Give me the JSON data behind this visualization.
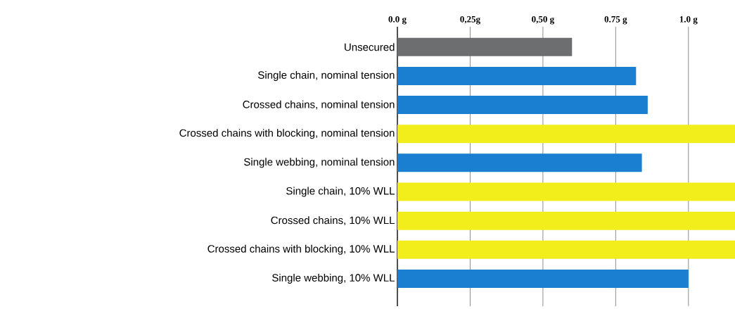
{
  "chart_data": {
    "type": "bar",
    "orientation": "horizontal",
    "categories": [
      "Unsecured",
      "Single chain, nominal tension",
      "Crossed chains, nominal tension",
      "Crossed chains with blocking, nominal tension",
      "Single webbing, nominal tension",
      "Single chain, 10% WLL",
      "Crossed chains, 10% WLL",
      "Crossed chains with blocking, 10% WLL",
      "Single webbing, 10% WLL"
    ],
    "values": [
      0.6,
      0.82,
      0.86,
      1.16,
      0.84,
      1.16,
      1.16,
      1.16,
      1.0
    ],
    "colors": [
      "#6d6e70",
      "#1a7fd0",
      "#1a7fd0",
      "#f2ee1c",
      "#1a7fd0",
      "#f2ee1c",
      "#f2ee1c",
      "#f2ee1c",
      "#1a7fd0"
    ],
    "xlim": [
      0,
      1.16
    ],
    "xticks": [
      {
        "value": 0,
        "label": "0.0 g"
      },
      {
        "value": 0.25,
        "label": "0,25g"
      },
      {
        "value": 0.5,
        "label": "0,50 g"
      },
      {
        "value": 0.75,
        "label": "0.75 g"
      },
      {
        "value": 1.0,
        "label": "1.0 g"
      }
    ],
    "grid": "x"
  }
}
